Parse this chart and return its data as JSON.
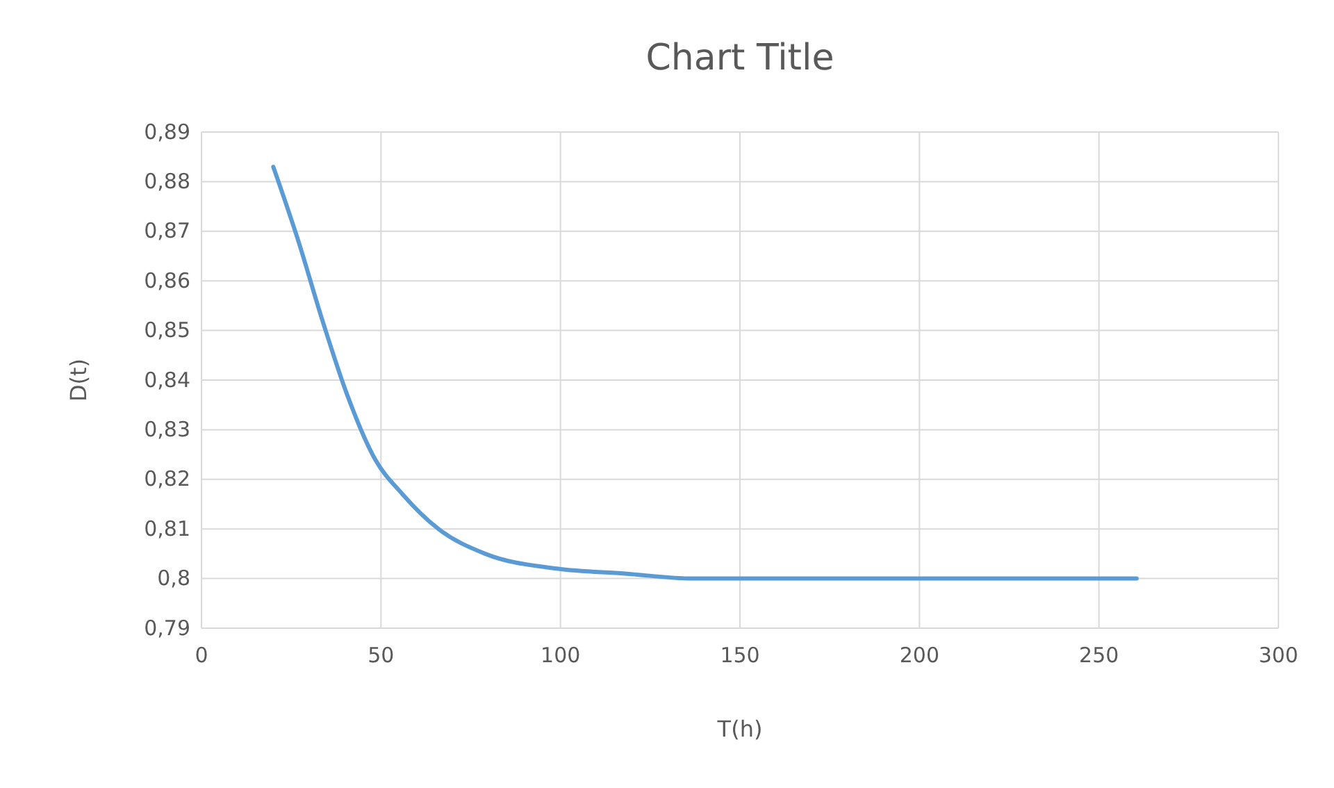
{
  "chart_data": {
    "type": "line",
    "title": "Chart Title",
    "xlabel": "T(h)",
    "ylabel": "D(t)",
    "series": [
      {
        "color": "#5b9bd5",
        "x": [
          20,
          27,
          33.7,
          40.6,
          48.4,
          56,
          66,
          79,
          99,
          118,
          137,
          180,
          220,
          260.5
        ],
        "values": [
          0.883,
          0.868,
          0.852,
          0.837,
          0.824,
          0.817,
          0.81,
          0.805,
          0.802,
          0.801,
          0.8,
          0.8,
          0.8,
          0.8
        ]
      }
    ],
    "xlim": [
      0,
      300
    ],
    "xticks": [
      0,
      50,
      100,
      150,
      200,
      250,
      300
    ],
    "ylim": [
      0.79,
      0.89
    ],
    "yticks": [
      {
        "value": 0.79,
        "label": "0,79"
      },
      {
        "value": 0.8,
        "label": "0,8"
      },
      {
        "value": 0.81,
        "label": "0,81"
      },
      {
        "value": 0.82,
        "label": "0,82"
      },
      {
        "value": 0.83,
        "label": "0,83"
      },
      {
        "value": 0.84,
        "label": "0,84"
      },
      {
        "value": 0.85,
        "label": "0,85"
      },
      {
        "value": 0.86,
        "label": "0,86"
      },
      {
        "value": 0.87,
        "label": "0,87"
      },
      {
        "value": 0.88,
        "label": "0,88"
      },
      {
        "value": 0.89,
        "label": "0,89"
      }
    ],
    "grid": true,
    "marker": "none",
    "line_style": "solid"
  }
}
